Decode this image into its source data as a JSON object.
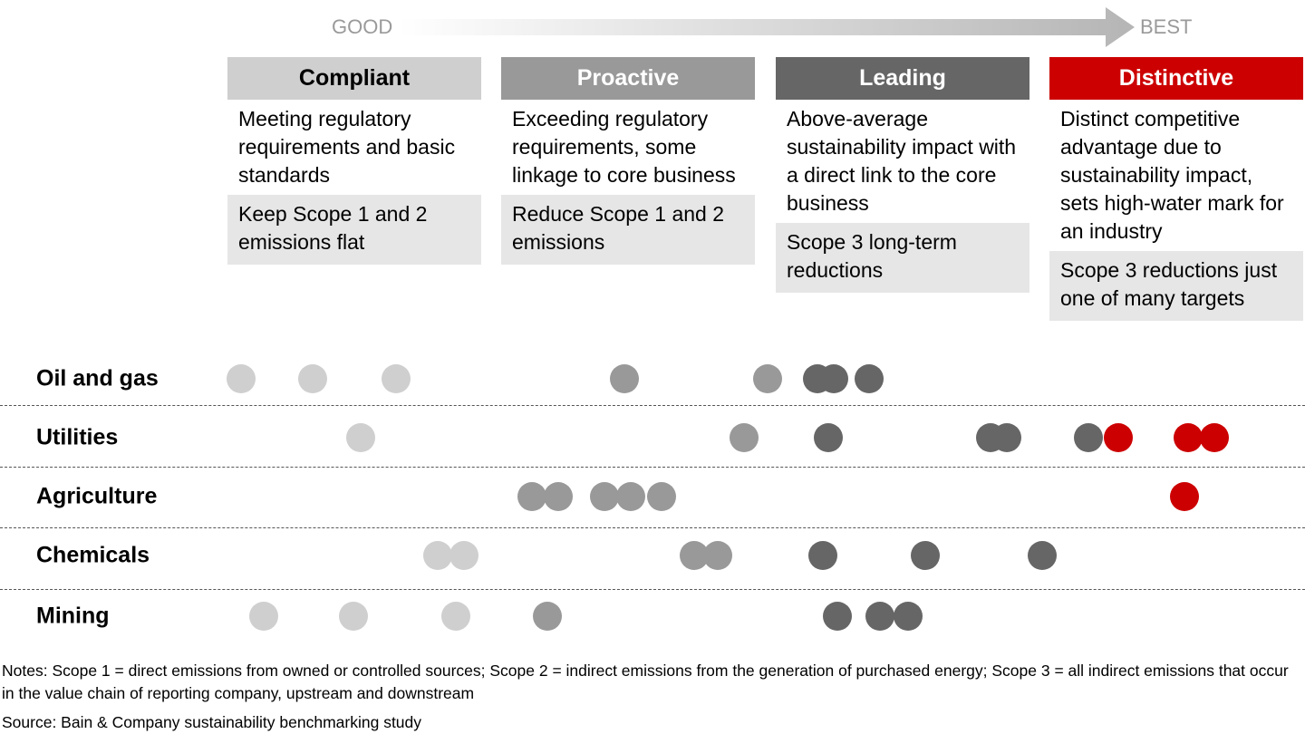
{
  "scale": {
    "start_label": "GOOD",
    "end_label": "BEST"
  },
  "columns": [
    {
      "title": "Compliant",
      "description": "Meeting regulatory requirements and basic standards",
      "target": "Keep Scope 1 and 2 emissions flat",
      "color": "#cfcfcf"
    },
    {
      "title": "Proactive",
      "description": "Exceeding regulatory requirements, some linkage to core business",
      "target": "Reduce Scope 1 and 2 emissions",
      "color": "#999999"
    },
    {
      "title": "Leading",
      "description": "Above-average sustainability impact with a direct link to the core business",
      "target": "Scope 3 long-term reductions",
      "color": "#666666"
    },
    {
      "title": "Distinctive",
      "description": "Distinct competitive advantage due to sustainability impact, sets high-water mark for an industry",
      "target": "Scope 3 reductions just one of many targets",
      "color": "#cc0000"
    }
  ],
  "industries": [
    {
      "name": "Oil and gas",
      "dots": [
        {
          "shade": "light",
          "pos": 266
        },
        {
          "shade": "light",
          "pos": 345
        },
        {
          "shade": "light",
          "pos": 437
        },
        {
          "shade": "mid",
          "pos": 689
        },
        {
          "shade": "mid",
          "pos": 847
        },
        {
          "shade": "dark",
          "pos": 902
        },
        {
          "shade": "dark",
          "pos": 920
        },
        {
          "shade": "dark",
          "pos": 959
        }
      ]
    },
    {
      "name": "Utilities",
      "dots": [
        {
          "shade": "light",
          "pos": 398
        },
        {
          "shade": "mid",
          "pos": 821
        },
        {
          "shade": "dark",
          "pos": 914
        },
        {
          "shade": "dark",
          "pos": 1093
        },
        {
          "shade": "dark",
          "pos": 1111
        },
        {
          "shade": "dark",
          "pos": 1201
        },
        {
          "shade": "red",
          "pos": 1234
        },
        {
          "shade": "red",
          "pos": 1311
        },
        {
          "shade": "red",
          "pos": 1340
        }
      ]
    },
    {
      "name": "Agriculture",
      "dots": [
        {
          "shade": "mid",
          "pos": 587
        },
        {
          "shade": "mid",
          "pos": 616
        },
        {
          "shade": "mid",
          "pos": 667
        },
        {
          "shade": "mid",
          "pos": 696
        },
        {
          "shade": "mid",
          "pos": 730
        },
        {
          "shade": "red",
          "pos": 1307
        }
      ]
    },
    {
      "name": "Chemicals",
      "dots": [
        {
          "shade": "light",
          "pos": 483
        },
        {
          "shade": "light",
          "pos": 512
        },
        {
          "shade": "mid",
          "pos": 766
        },
        {
          "shade": "mid",
          "pos": 792
        },
        {
          "shade": "dark",
          "pos": 908
        },
        {
          "shade": "dark",
          "pos": 1021
        },
        {
          "shade": "dark",
          "pos": 1150
        }
      ]
    },
    {
      "name": "Mining",
      "dots": [
        {
          "shade": "light",
          "pos": 291
        },
        {
          "shade": "light",
          "pos": 390
        },
        {
          "shade": "light",
          "pos": 503
        },
        {
          "shade": "mid",
          "pos": 604
        },
        {
          "shade": "dark",
          "pos": 924
        },
        {
          "shade": "dark",
          "pos": 971
        },
        {
          "shade": "dark",
          "pos": 1002
        }
      ]
    }
  ],
  "notes": "Notes: Scope 1 = direct emissions from owned or controlled sources; Scope 2 = indirect emissions from the generation of purchased energy; Scope 3 = all indirect emissions that occur in the value chain of reporting company, upstream and downstream",
  "source": "Source: Bain & Company sustainability benchmarking study"
}
